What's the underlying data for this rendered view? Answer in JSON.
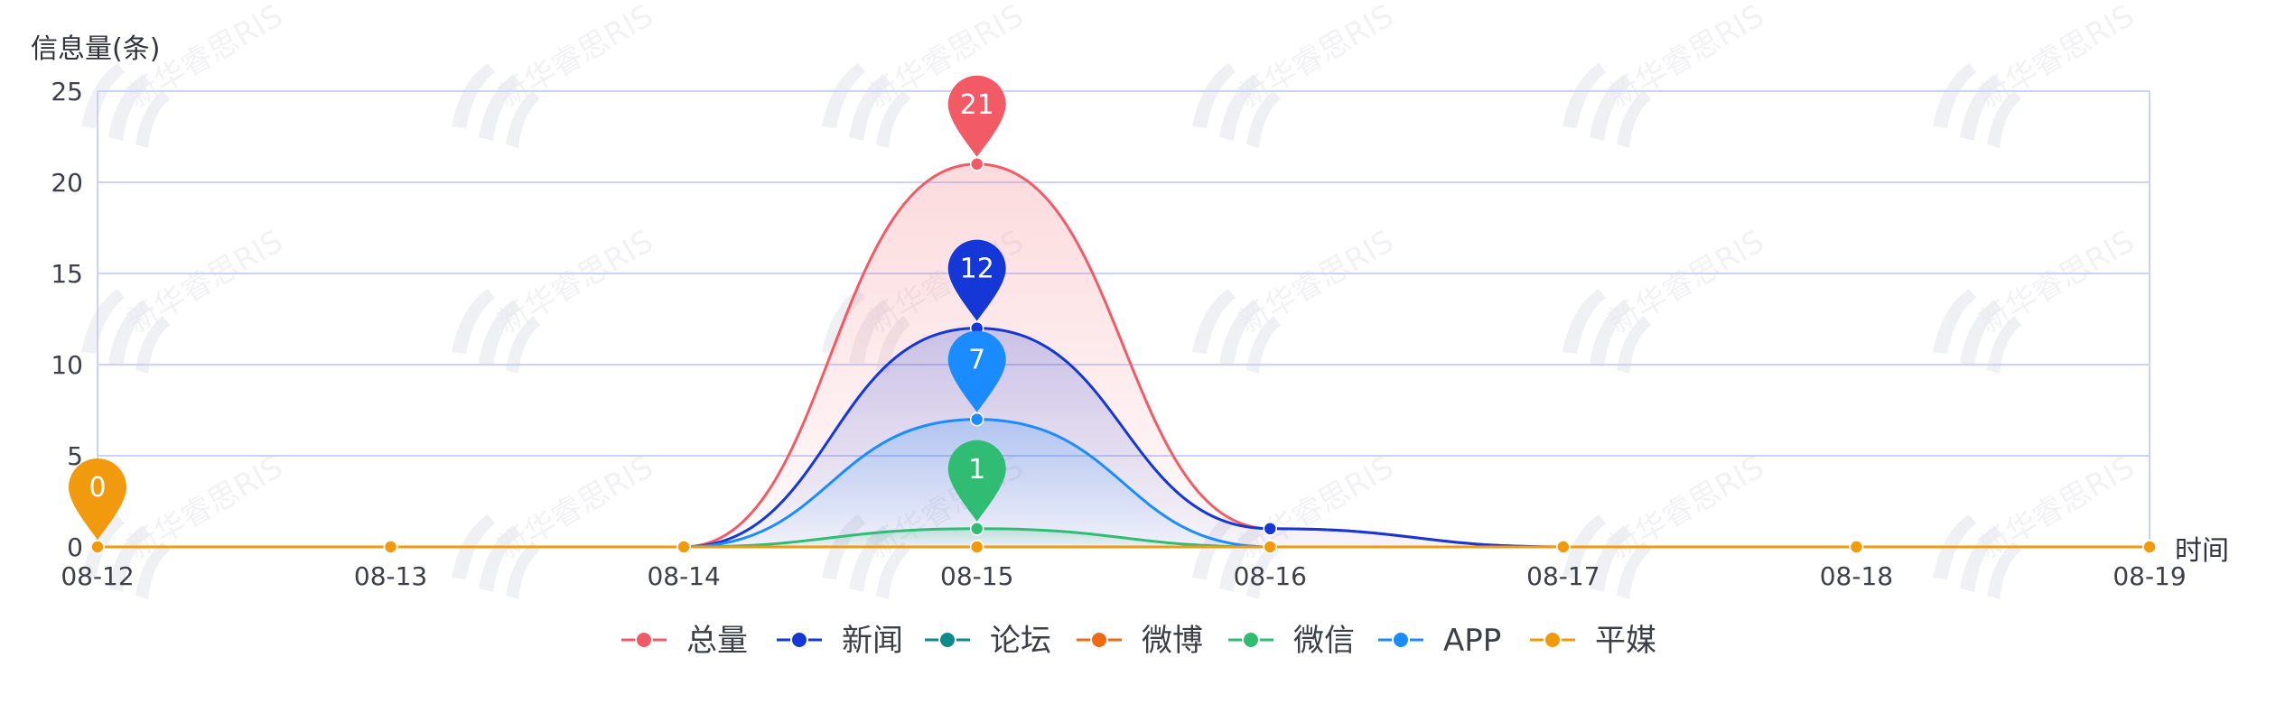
{
  "chart_data": {
    "type": "line",
    "title": "",
    "ylabel": "信息量(条)",
    "xlabel": "时间",
    "categories": [
      "08-12",
      "08-13",
      "08-14",
      "08-15",
      "08-16",
      "08-17",
      "08-18",
      "08-19"
    ],
    "ylim": [
      0,
      25
    ],
    "yticks": [
      0,
      5,
      10,
      15,
      20,
      25
    ],
    "grid": true,
    "legend_position": "bottom",
    "series": [
      {
        "name": "总量",
        "color": "#f25a66",
        "values": [
          0,
          0,
          0,
          21,
          1,
          0,
          0,
          0
        ],
        "area": true
      },
      {
        "name": "新闻",
        "color": "#1437d6",
        "values": [
          0,
          0,
          0,
          12,
          1,
          0,
          0,
          0
        ],
        "area": true
      },
      {
        "name": "论坛",
        "color": "#0f8a8a",
        "values": [
          0,
          0,
          0,
          0,
          0,
          0,
          0,
          0
        ],
        "area": false
      },
      {
        "name": "微博",
        "color": "#ee6a17",
        "values": [
          0,
          0,
          0,
          0,
          0,
          0,
          0,
          0
        ],
        "area": false
      },
      {
        "name": "微信",
        "color": "#31bc74",
        "values": [
          0,
          0,
          0,
          1,
          0,
          0,
          0,
          0
        ],
        "area": true
      },
      {
        "name": "APP",
        "color": "#1a8cff",
        "values": [
          0,
          0,
          0,
          7,
          0,
          0,
          0,
          0
        ],
        "area": true
      },
      {
        "name": "平媒",
        "color": "#f29a0e",
        "values": [
          0,
          0,
          0,
          0,
          0,
          0,
          0,
          0
        ],
        "area": false
      }
    ],
    "markers": [
      {
        "series": "总量",
        "x": "08-15",
        "value": 21,
        "label": "21"
      },
      {
        "series": "新闻",
        "x": "08-15",
        "value": 12,
        "label": "12"
      },
      {
        "series": "APP",
        "x": "08-15",
        "value": 7,
        "label": "7"
      },
      {
        "series": "微信",
        "x": "08-15",
        "value": 1,
        "label": "1"
      },
      {
        "series": "平媒",
        "x": "08-12",
        "value": 0,
        "label": "0"
      }
    ]
  },
  "watermark": {
    "text": "新华睿思RIS"
  }
}
